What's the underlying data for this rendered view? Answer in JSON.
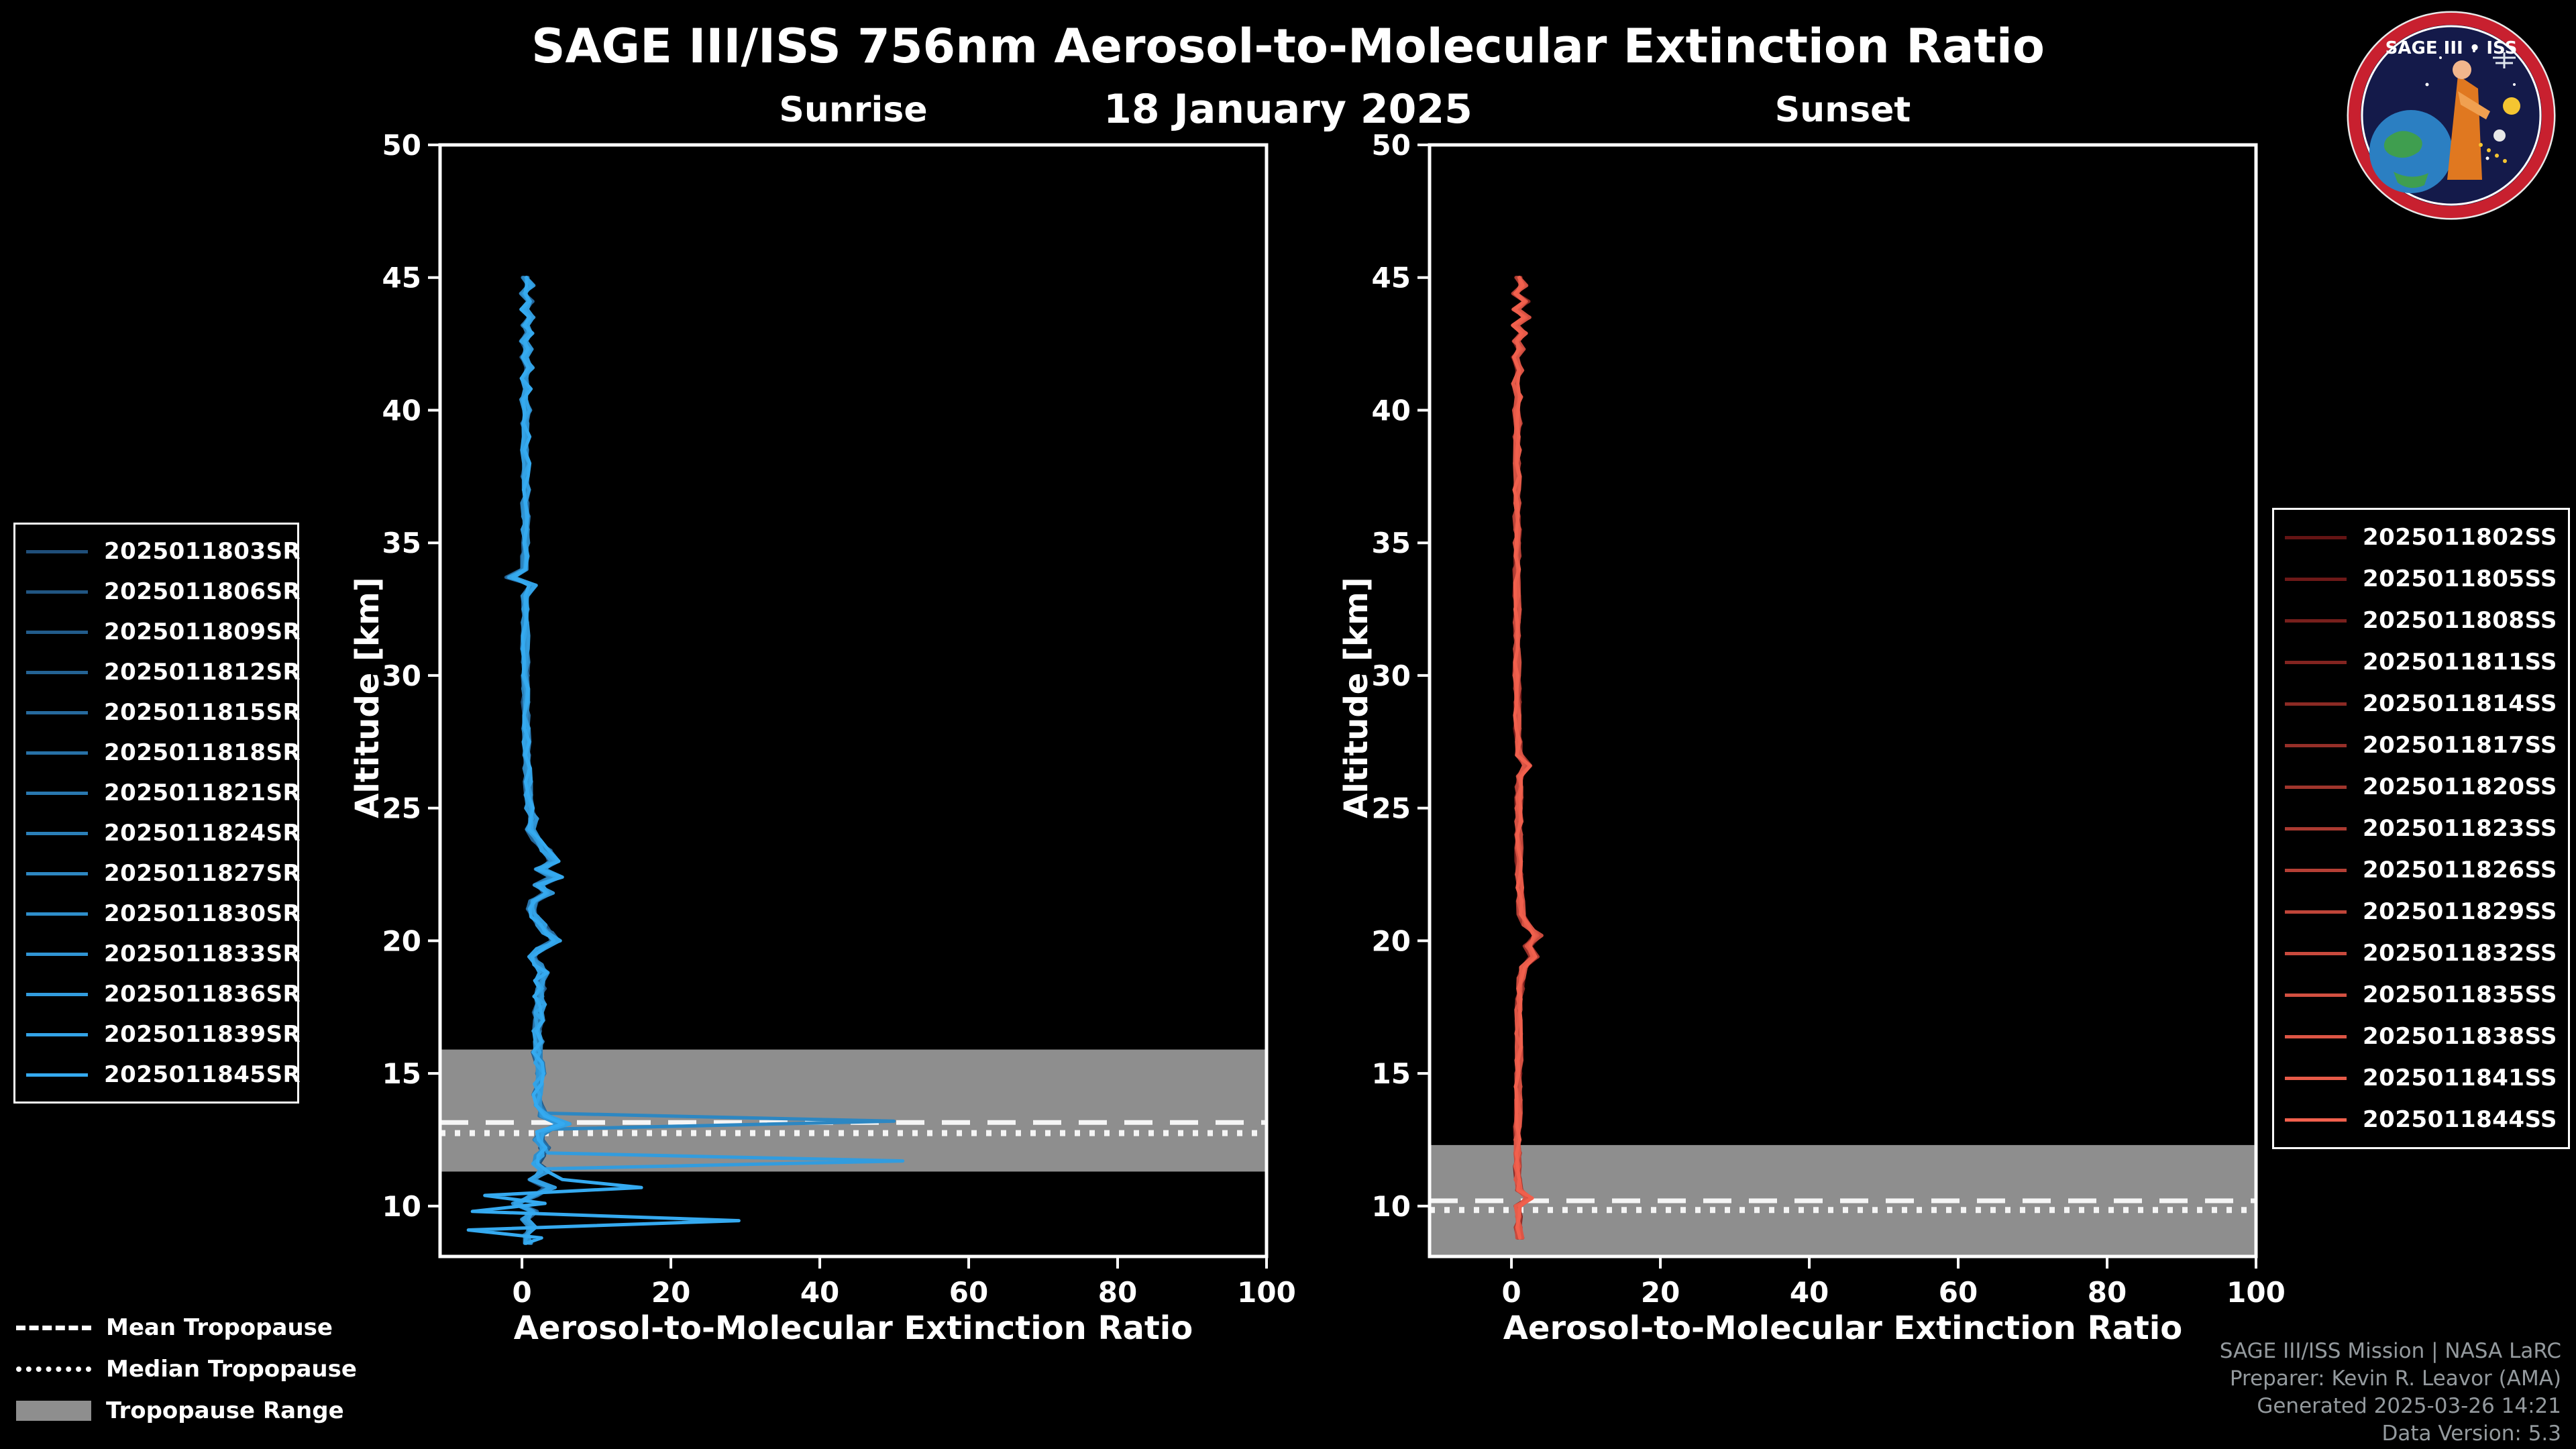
{
  "header": {
    "title": "SAGE III/ISS 756nm Aerosol-to-Molecular Extinction Ratio",
    "date": "18 January 2025"
  },
  "logo": {
    "text": "SAGE III • ISS"
  },
  "tropopause_legend": [
    {
      "style": "dashed",
      "label": "Mean Tropopause"
    },
    {
      "style": "dotted",
      "label": "Median Tropopause"
    },
    {
      "style": "patch",
      "label": "Tropopause Range"
    }
  ],
  "footer": {
    "lines": [
      "SAGE III/ISS Mission | NASA LaRC",
      "Preparer: Kevin R. Leavor (AMA)",
      "Generated 2025-03-26 14:21",
      "Data Version: 5.3"
    ]
  },
  "chart_data": {
    "type": "line",
    "title": "SAGE III/ISS 756nm Aerosol-to-Molecular Extinction Ratio",
    "subtitle": "18 January 2025",
    "xlabel": "Aerosol-to-Molecular Extinction Ratio",
    "ylabel": "Altitude [km]",
    "xlim": [
      -11,
      100
    ],
    "ylim": [
      8.1,
      50
    ],
    "xticks": [
      0,
      20,
      40,
      60,
      80,
      100
    ],
    "yticks": [
      10,
      15,
      20,
      25,
      30,
      35,
      40,
      45,
      50
    ],
    "band_color": "#8e8e8e",
    "mean_line_color": "#f5f5f5",
    "median_line_color": "#f5f5f5",
    "panels": [
      {
        "id": "sunrise",
        "title": "Sunrise",
        "color_start": "#1f4e79",
        "color_end": "#35aaf0",
        "jitter": 1.0,
        "labels": [
          "2025011803SR",
          "2025011806SR",
          "2025011809SR",
          "2025011812SR",
          "2025011815SR",
          "2025011818SR",
          "2025011821SR",
          "2025011824SR",
          "2025011827SR",
          "2025011830SR",
          "2025011833SR",
          "2025011836SR",
          "2025011839SR",
          "2025011845SR"
        ],
        "tropopause": {
          "range_km": [
            11.3,
            15.9
          ],
          "mean_km": 13.15,
          "median_km": 12.75
        },
        "base_profile": [
          [
            45.0,
            0.4
          ],
          [
            44.7,
            1.1
          ],
          [
            44.4,
            0.2
          ],
          [
            44.1,
            1.0
          ],
          [
            43.8,
            0.3
          ],
          [
            43.5,
            1.2
          ],
          [
            43.2,
            0.4
          ],
          [
            42.9,
            1.0
          ],
          [
            42.6,
            0.2
          ],
          [
            42.3,
            0.9
          ],
          [
            42.0,
            0.3
          ],
          [
            41.6,
            1.0
          ],
          [
            41.2,
            0.3
          ],
          [
            40.8,
            0.8
          ],
          [
            40.4,
            0.2
          ],
          [
            40.0,
            0.7
          ],
          [
            39.5,
            0.4
          ],
          [
            39.0,
            0.6
          ],
          [
            38.5,
            0.3
          ],
          [
            38.0,
            0.6
          ],
          [
            37.5,
            0.4
          ],
          [
            37.0,
            0.6
          ],
          [
            36.5,
            0.4
          ],
          [
            36.0,
            0.5
          ],
          [
            35.5,
            0.4
          ],
          [
            35.0,
            0.5
          ],
          [
            34.5,
            0.4
          ],
          [
            34.0,
            0.4
          ],
          [
            33.7,
            -1.6
          ],
          [
            33.4,
            1.4
          ],
          [
            33.0,
            0.4
          ],
          [
            32.5,
            0.5
          ],
          [
            32.0,
            0.4
          ],
          [
            31.5,
            0.5
          ],
          [
            31.0,
            0.4
          ],
          [
            30.5,
            0.5
          ],
          [
            30.0,
            0.4
          ],
          [
            29.5,
            0.5
          ],
          [
            29.0,
            0.5
          ],
          [
            28.5,
            0.5
          ],
          [
            28.0,
            0.5
          ],
          [
            27.5,
            0.6
          ],
          [
            27.0,
            0.6
          ],
          [
            26.5,
            0.7
          ],
          [
            26.0,
            0.8
          ],
          [
            25.5,
            0.9
          ],
          [
            25.0,
            1.0
          ],
          [
            24.6,
            1.6
          ],
          [
            24.2,
            1.1
          ],
          [
            23.8,
            2.0
          ],
          [
            23.4,
            3.2
          ],
          [
            23.0,
            4.2
          ],
          [
            22.7,
            2.4
          ],
          [
            22.4,
            4.6
          ],
          [
            22.1,
            2.2
          ],
          [
            21.8,
            3.6
          ],
          [
            21.5,
            1.6
          ],
          [
            21.2,
            1.2
          ],
          [
            20.9,
            1.8
          ],
          [
            20.6,
            2.6
          ],
          [
            20.3,
            3.4
          ],
          [
            20.0,
            4.8
          ],
          [
            19.7,
            2.6
          ],
          [
            19.4,
            1.4
          ],
          [
            19.1,
            2.2
          ],
          [
            18.8,
            2.9
          ],
          [
            18.5,
            2.3
          ],
          [
            18.2,
            2.7
          ],
          [
            17.9,
            2.2
          ],
          [
            17.6,
            2.5
          ],
          [
            17.3,
            2.1
          ],
          [
            17.0,
            2.3
          ],
          [
            16.6,
            2.0
          ],
          [
            16.2,
            2.2
          ],
          [
            15.8,
            2.0
          ],
          [
            15.4,
            2.4
          ],
          [
            15.0,
            2.6
          ],
          [
            14.6,
            2.2
          ],
          [
            14.2,
            2.1
          ],
          [
            13.8,
            2.4
          ],
          [
            13.4,
            3.0
          ],
          [
            13.1,
            5.5
          ],
          [
            12.8,
            2.6
          ],
          [
            12.5,
            2.2
          ],
          [
            12.2,
            3.0
          ],
          [
            11.9,
            2.4
          ],
          [
            11.6,
            2.0
          ],
          [
            11.3,
            3.2
          ],
          [
            11.0,
            1.2
          ],
          [
            10.7,
            3.8
          ],
          [
            10.4,
            1.6
          ],
          [
            10.1,
            -0.8
          ],
          [
            9.8,
            1.6
          ],
          [
            9.5,
            0.4
          ],
          [
            9.2,
            1.4
          ],
          [
            8.9,
            0.6
          ],
          [
            8.6,
            0.8
          ]
        ],
        "specials": [
          {
            "series_index": 8,
            "points": [
              [
                13.5,
                3.0
              ],
              [
                13.2,
                50.0
              ],
              [
                12.9,
                4.0
              ]
            ]
          },
          {
            "series_index": 11,
            "points": [
              [
                12.0,
                3.0
              ],
              [
                11.7,
                51.0
              ],
              [
                11.4,
                2.0
              ]
            ]
          },
          {
            "series_index": 13,
            "points": [
              [
                11.0,
                5.0
              ],
              [
                10.7,
                16.0
              ],
              [
                10.4,
                -5.0
              ],
              [
                10.1,
                3.0
              ],
              [
                9.8,
                -7.0
              ],
              [
                9.45,
                29.0
              ],
              [
                9.1,
                -7.0
              ],
              [
                8.8,
                3.0
              ]
            ]
          }
        ]
      },
      {
        "id": "sunset",
        "title": "Sunset",
        "color_start": "#641414",
        "color_end": "#f1604d",
        "jitter": 0.8,
        "labels": [
          "2025011802SS",
          "2025011805SS",
          "2025011808SS",
          "2025011811SS",
          "2025011814SS",
          "2025011817SS",
          "2025011820SS",
          "2025011823SS",
          "2025011826SS",
          "2025011829SS",
          "2025011832SS",
          "2025011835SS",
          "2025011838SS",
          "2025011841SS",
          "2025011844SS"
        ],
        "tropopause": {
          "range_km": [
            8.1,
            12.3
          ],
          "mean_km": 10.2,
          "median_km": 9.85
        },
        "base_profile": [
          [
            45.0,
            0.9
          ],
          [
            44.7,
            1.6
          ],
          [
            44.4,
            0.5
          ],
          [
            44.1,
            1.9
          ],
          [
            43.8,
            0.6
          ],
          [
            43.5,
            2.1
          ],
          [
            43.2,
            0.5
          ],
          [
            42.9,
            1.6
          ],
          [
            42.6,
            0.6
          ],
          [
            42.3,
            1.3
          ],
          [
            42.0,
            0.5
          ],
          [
            41.5,
            1.1
          ],
          [
            41.0,
            0.5
          ],
          [
            40.5,
            1.0
          ],
          [
            40.0,
            0.6
          ],
          [
            39.5,
            0.9
          ],
          [
            39.0,
            0.7
          ],
          [
            38.5,
            0.8
          ],
          [
            38.0,
            0.7
          ],
          [
            37.5,
            0.8
          ],
          [
            37.0,
            0.7
          ],
          [
            36.5,
            0.8
          ],
          [
            36.0,
            0.7
          ],
          [
            35.5,
            0.8
          ],
          [
            35.0,
            0.7
          ],
          [
            34.5,
            0.8
          ],
          [
            34.0,
            0.7
          ],
          [
            33.5,
            0.8
          ],
          [
            33.0,
            0.7
          ],
          [
            32.5,
            0.8
          ],
          [
            32.0,
            0.7
          ],
          [
            31.5,
            0.8
          ],
          [
            31.0,
            0.7
          ],
          [
            30.5,
            0.8
          ],
          [
            30.0,
            0.7
          ],
          [
            29.5,
            0.8
          ],
          [
            29.0,
            0.8
          ],
          [
            28.5,
            0.8
          ],
          [
            28.0,
            0.8
          ],
          [
            27.5,
            0.9
          ],
          [
            27.0,
            1.0
          ],
          [
            26.6,
            2.1
          ],
          [
            26.2,
            1.1
          ],
          [
            25.8,
            1.0
          ],
          [
            25.4,
            1.0
          ],
          [
            25.0,
            1.0
          ],
          [
            24.5,
            1.0
          ],
          [
            24.0,
            1.0
          ],
          [
            23.5,
            1.0
          ],
          [
            23.0,
            1.0
          ],
          [
            22.5,
            1.0
          ],
          [
            22.0,
            1.1
          ],
          [
            21.5,
            1.2
          ],
          [
            21.0,
            1.3
          ],
          [
            20.6,
            2.0
          ],
          [
            20.2,
            3.6
          ],
          [
            19.8,
            2.2
          ],
          [
            19.4,
            3.0
          ],
          [
            19.0,
            1.7
          ],
          [
            18.6,
            1.3
          ],
          [
            18.2,
            1.2
          ],
          [
            17.8,
            1.1
          ],
          [
            17.4,
            1.0
          ],
          [
            17.0,
            1.0
          ],
          [
            16.5,
            1.0
          ],
          [
            16.0,
            1.0
          ],
          [
            15.5,
            1.0
          ],
          [
            15.0,
            1.0
          ],
          [
            14.5,
            0.9
          ],
          [
            14.0,
            0.9
          ],
          [
            13.5,
            0.9
          ],
          [
            13.0,
            0.8
          ],
          [
            12.5,
            0.8
          ],
          [
            12.0,
            0.8
          ],
          [
            11.5,
            0.8
          ],
          [
            11.0,
            0.9
          ],
          [
            10.6,
            1.1
          ],
          [
            10.3,
            2.3
          ],
          [
            10.0,
            0.9
          ],
          [
            9.6,
            1.1
          ],
          [
            9.2,
            0.9
          ],
          [
            8.8,
            1.1
          ]
        ],
        "specials": []
      }
    ]
  }
}
